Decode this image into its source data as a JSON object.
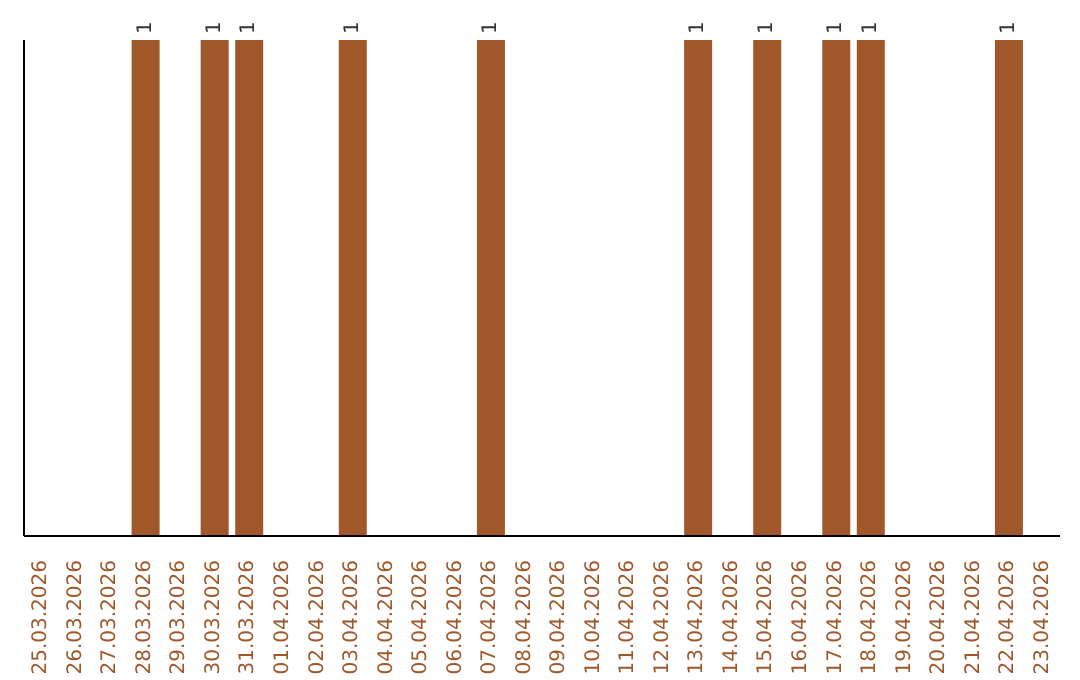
{
  "chart_data": {
    "type": "bar",
    "categories": [
      "25.03.2026",
      "26.03.2026",
      "27.03.2026",
      "28.03.2026",
      "29.03.2026",
      "30.03.2026",
      "31.03.2026",
      "01.04.2026",
      "02.04.2026",
      "03.04.2026",
      "04.04.2026",
      "05.04.2026",
      "06.04.2026",
      "07.04.2026",
      "08.04.2026",
      "09.04.2026",
      "10.04.2026",
      "11.04.2026",
      "12.04.2026",
      "13.04.2026",
      "14.04.2026",
      "15.04.2026",
      "16.04.2026",
      "17.04.2026",
      "18.04.2026",
      "19.04.2026",
      "20.04.2026",
      "21.04.2026",
      "22.04.2026",
      "23.04.2026"
    ],
    "values": [
      0,
      0,
      0,
      1,
      0,
      1,
      1,
      0,
      0,
      1,
      0,
      0,
      0,
      1,
      0,
      0,
      0,
      0,
      0,
      1,
      0,
      1,
      0,
      1,
      1,
      0,
      0,
      0,
      1,
      0
    ],
    "value_labels": [
      null,
      null,
      null,
      "1",
      null,
      "1",
      "1",
      null,
      null,
      "1",
      null,
      null,
      null,
      "1",
      null,
      null,
      null,
      null,
      null,
      "1",
      null,
      "1",
      null,
      "1",
      "1",
      null,
      null,
      null,
      "1",
      null
    ],
    "color": "#a0582a",
    "tick_labels": "x",
    "grid": false,
    "legend": false
  }
}
